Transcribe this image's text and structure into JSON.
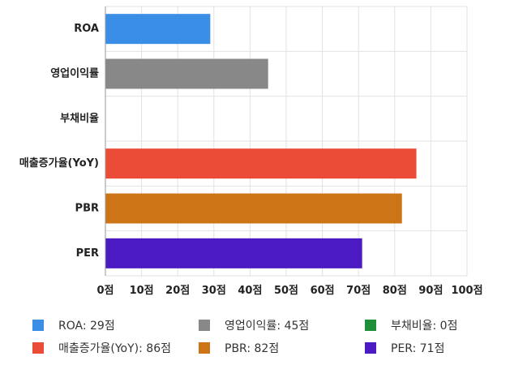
{
  "chart_data": {
    "type": "bar",
    "orientation": "horizontal",
    "categories": [
      "ROA",
      "영업이익률",
      "부채비율",
      "매출증가율(YoY)",
      "PBR",
      "PER"
    ],
    "values": [
      29,
      45,
      0,
      86,
      82,
      71
    ],
    "colors": [
      "#3a8ee6",
      "#888888",
      "#1f8f3a",
      "#eb4c38",
      "#cc7416",
      "#4b1ac2"
    ],
    "xlim": [
      0,
      100
    ],
    "xticks": [
      0,
      10,
      20,
      30,
      40,
      50,
      60,
      70,
      80,
      90,
      100
    ],
    "tick_labels": [
      "0점",
      "10점",
      "20점",
      "30점",
      "40점",
      "50점",
      "60점",
      "70점",
      "80점",
      "90점",
      "100점"
    ],
    "grid": true,
    "legend_position": "bottom",
    "legend": [
      {
        "label": "ROA: 29점",
        "color": "#3a8ee6"
      },
      {
        "label": "영업이익률: 45점",
        "color": "#888888"
      },
      {
        "label": "부채비율: 0점",
        "color": "#1f8f3a"
      },
      {
        "label": "매출증가율(YoY): 86점",
        "color": "#eb4c38"
      },
      {
        "label": "PBR: 82점",
        "color": "#cc7416"
      },
      {
        "label": "PER: 71점",
        "color": "#4b1ac2"
      }
    ]
  }
}
